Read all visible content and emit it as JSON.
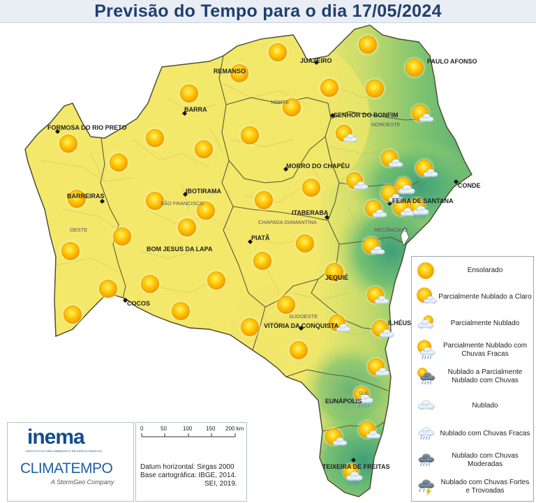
{
  "title": "Previsão do Tempo para o dia 17/05/2024",
  "cities": [
    {
      "name": "REMANSO"
    },
    {
      "name": "JUAZEIRO"
    },
    {
      "name": "PAULO AFONSO"
    },
    {
      "name": "BARRA"
    },
    {
      "name": "SENHOR DO BONFIM"
    },
    {
      "name": "FORMOSA DO RIO PRETO"
    },
    {
      "name": "MORRO DO CHAPÉU"
    },
    {
      "name": "CONDE"
    },
    {
      "name": "IBOTIRAMA"
    },
    {
      "name": "BARREIRAS"
    },
    {
      "name": "FEIRA DE SANTANA"
    },
    {
      "name": "ITABERABA"
    },
    {
      "name": "PIATÃ"
    },
    {
      "name": "BOM JESUS DA LAPA"
    },
    {
      "name": "JEQUIÉ"
    },
    {
      "name": "COCOS"
    },
    {
      "name": "ILHÉUS"
    },
    {
      "name": "VITÓRIA DA CONQUISTA"
    },
    {
      "name": "EUNÁPOLIS"
    },
    {
      "name": "TEIXEIRA DE FREITAS"
    }
  ],
  "regions": [
    {
      "name": "NORTE"
    },
    {
      "name": "NORDESTE"
    },
    {
      "name": "SÃO FRANCISCO"
    },
    {
      "name": "OESTE"
    },
    {
      "name": "CHAPADA DIAMANTINA"
    },
    {
      "name": "RECÔNCAVO"
    },
    {
      "name": "SUDOESTE"
    },
    {
      "name": "SUL"
    }
  ],
  "legend": [
    {
      "icon": "sun-icon",
      "label": "Ensolarado"
    },
    {
      "icon": "sun-cloud-icon",
      "label": "Parcialmente Nublado a Claro"
    },
    {
      "icon": "cloud-sun-icon",
      "label": "Parcialmente Nublado"
    },
    {
      "icon": "sun-cloud-light-rain-icon",
      "label": "Parcialmente Nublado com Chuvas Fracas"
    },
    {
      "icon": "dark-cloud-sun-rain-icon",
      "label": "Nublado a Parcialmente Nublado com Chuvas"
    },
    {
      "icon": "cloud-icon",
      "label": "Nublado"
    },
    {
      "icon": "cloud-light-rain-icon",
      "label": "Nublado com Chuvas Fracas"
    },
    {
      "icon": "dark-cloud-rain-icon",
      "label": "Nublado com Chuvas Moderadas"
    },
    {
      "icon": "storm-icon",
      "label": "Nublado com Chuvas Fortes e Trovoadas"
    }
  ],
  "scale": {
    "ticks": [
      "0",
      "50",
      "100",
      "150",
      "200 km"
    ],
    "datum": [
      "Datum horizontal: Sirgas 2000",
      "Base cartográfica: IBGE, 2014.",
      "SEI, 2019."
    ]
  },
  "logos": {
    "inema": "inema",
    "inema_sub": "INSTITUTO DO MEIO AMBIENTE E RECURSOS HÍDRICOS",
    "climatempo": "CLIMATEMPO",
    "stormgeo": "A StormGeo Company"
  },
  "colors": {
    "sunny_fill": "#f3e86a",
    "coast_fill": "#4fae7b",
    "title_color": "#1f3f6e",
    "sun": "#f6b400"
  },
  "forecast_icons": [
    "sun-icon",
    "sun-icon",
    "sun-icon",
    "sun-icon",
    "sun-icon",
    "sun-icon",
    "sun-icon",
    "sun-icon",
    "sun-icon",
    "sun-icon",
    "sun-icon",
    "sun-icon",
    "sun-icon",
    "sun-icon",
    "sun-icon",
    "sun-icon",
    "sun-icon",
    "sun-icon",
    "sun-icon",
    "sun-icon",
    "sun-icon",
    "sun-icon",
    "sun-icon",
    "sun-icon",
    "sun-icon",
    "sun-icon",
    "sun-icon",
    "sun-icon",
    "sun-icon",
    "sun-icon",
    "sun-icon",
    "sun-icon",
    "sun-cloud-icon",
    "sun-cloud-icon",
    "sun-cloud-icon",
    "sun-cloud-icon",
    "sun-cloud-icon",
    "sun-cloud-icon",
    "sun-cloud-icon",
    "sun-cloud-icon",
    "sun-cloud-icon",
    "sun-cloud-icon",
    "sun-cloud-icon",
    "sun-cloud-icon",
    "sun-cloud-icon",
    "sun-cloud-icon",
    "sun-cloud-light-rain-icon",
    "sun-cloud-light-rain-icon",
    "sun-cloud-light-rain-icon",
    "sun-cloud-light-rain-icon",
    "sun-cloud-icon"
  ]
}
